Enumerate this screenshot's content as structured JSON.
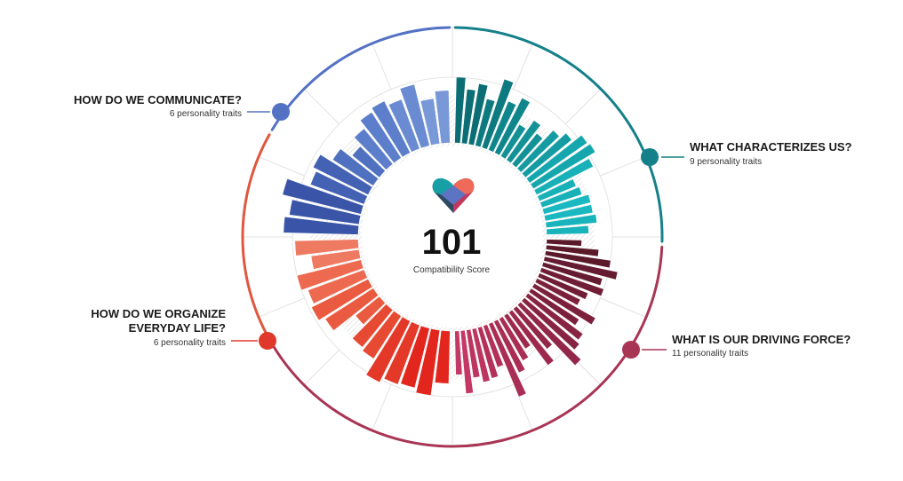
{
  "score": {
    "value": "101",
    "label": "Compatibility Score"
  },
  "categories": [
    {
      "id": "characterizes",
      "title_lines": [
        "WHAT CHARACTERIZES US?"
      ],
      "subtitle": "9 personality traits",
      "color": "#15808a"
    },
    {
      "id": "driving",
      "title_lines": [
        "WHAT IS OUR DRIVING FORCE?"
      ],
      "subtitle": "11 personality traits",
      "color": "#a93555"
    },
    {
      "id": "organize",
      "title_lines": [
        "HOW DO WE ORGANIZE",
        "EVERYDAY LIFE?"
      ],
      "subtitle": "6 personality traits",
      "color": "#e0392c"
    },
    {
      "id": "communicate",
      "title_lines": [
        "HOW DO WE COMMUNICATE?"
      ],
      "subtitle": "6 personality traits",
      "color": "#5372c4"
    }
  ],
  "chart_data": {
    "type": "radial-bar",
    "value_scale": "relative bar length, 0 to 1",
    "series": [
      {
        "name": "WHAT CHARACTERIZES US?",
        "colors": [
          "#0b6e74",
          "#0d7a80",
          "#0f868c",
          "#129197",
          "#149ca2",
          "#16a7ae",
          "#18b1b8",
          "#1ab8c0",
          "#19b3bb"
        ],
        "values": [
          0.75,
          0.62,
          0.7,
          0.55,
          0.82,
          0.6,
          0.7,
          0.42,
          0.55,
          0.45,
          0.6,
          0.68,
          0.8,
          0.82,
          0.72,
          0.45,
          0.48,
          0.55,
          0.55,
          0.58,
          0.48
        ]
      },
      {
        "name": "WHAT IS OUR DRIVING FORCE?",
        "colors": [
          "#5a1a2a",
          "#651c30",
          "#701e36",
          "#7c213c",
          "#872442",
          "#922748",
          "#9d2a4e",
          "#a92d54",
          "#b3305a",
          "#bc3460",
          "#c43866"
        ],
        "values": [
          0.4,
          0.6,
          0.75,
          0.85,
          0.7,
          0.75,
          0.6,
          0.55,
          0.8,
          0.65,
          0.78,
          0.82,
          0.95,
          0.6,
          0.75,
          0.45,
          0.55,
          0.65,
          0.9,
          0.5,
          0.6,
          0.62,
          0.55,
          0.72,
          0.5
        ]
      },
      {
        "name": "HOW DO WE ORGANIZE EVERYDAY LIFE?",
        "colors": [
          "#e2261d",
          "#e43828",
          "#e74a33",
          "#ea5a40",
          "#ed6a50",
          "#ef7a62"
        ],
        "values": [
          0.6,
          0.75,
          0.7,
          0.72,
          0.78,
          0.58,
          0.55,
          0.35,
          0.65,
          0.72,
          0.68,
          0.75,
          0.55,
          0.72
        ]
      },
      {
        "name": "HOW DO WE COMMUNICATE?",
        "colors": [
          "#3a55a8",
          "#4462b4",
          "#5070c0",
          "#5c7ecb",
          "#6a8bd2",
          "#7898d8"
        ],
        "values": [
          0.85,
          0.8,
          0.92,
          0.65,
          0.7,
          0.55,
          0.4,
          0.52,
          0.62,
          0.66,
          0.6,
          0.72,
          0.52,
          0.6
        ]
      }
    ]
  }
}
